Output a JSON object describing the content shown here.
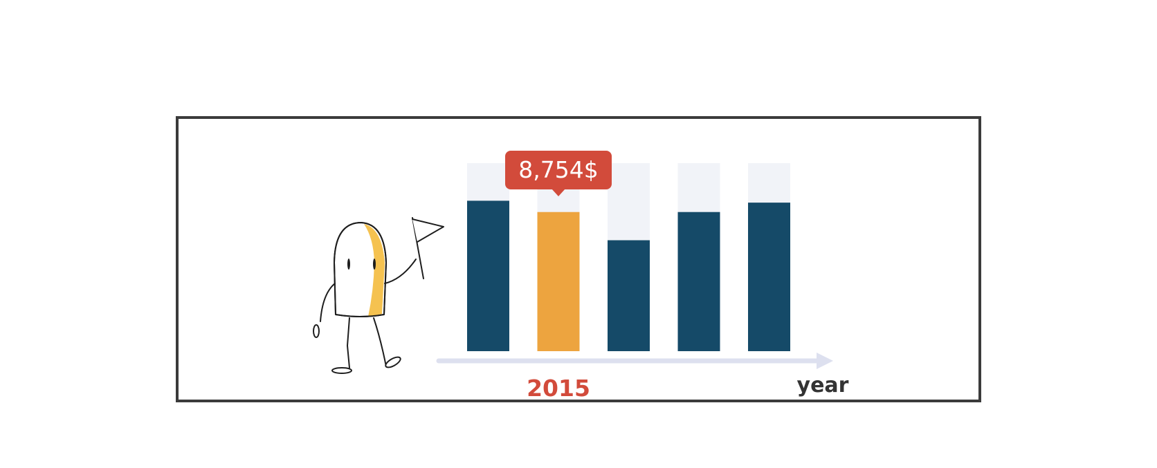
{
  "chart_data": {
    "type": "bar",
    "categories": [
      "",
      "2015",
      "",
      "",
      ""
    ],
    "values": [
      8.0,
      7.4,
      5.9,
      7.4,
      7.9
    ],
    "ylim": [
      0,
      10
    ],
    "highlight_index": 1,
    "callout": "8,754$",
    "xlabel": "year",
    "grid": false,
    "legend": "none"
  },
  "colors": {
    "bar": "#154a68",
    "highlight": "#eda43f",
    "track": "#f1f3f8",
    "callout": "#d24b3b",
    "axis": "#dde0ef",
    "highlight_label": "#d24b3b",
    "xlabel": "#333333",
    "frame": "#3b3b3b"
  },
  "icons": {
    "mascot": "mascot-holding-flag-icon"
  }
}
